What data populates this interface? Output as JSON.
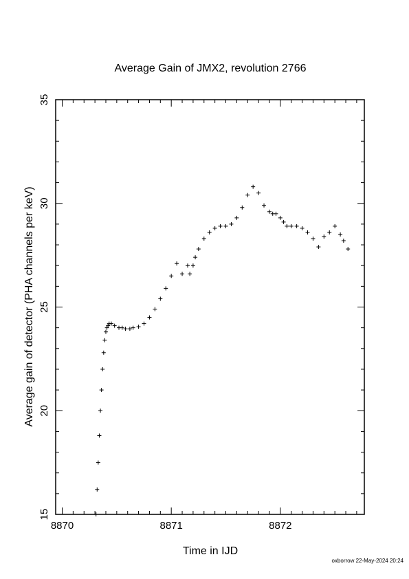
{
  "chart_data": {
    "type": "scatter",
    "title": "Average Gain of JMX2, revolution 2766",
    "xlabel": "Time in IJD",
    "ylabel": "Average gain of detector (PHA channels per keV)",
    "xlim": [
      8869.94,
      8872.77
    ],
    "ylim": [
      15,
      35
    ],
    "xticks": [
      8870,
      8871,
      8872
    ],
    "yticks": [
      15,
      20,
      25,
      30,
      35
    ],
    "marker": "plus",
    "grid": false,
    "footer": "oxborrow 22-May-2024 20:24",
    "series": [
      {
        "x": [
          8870.31,
          8870.32,
          8870.33,
          8870.34,
          8870.35,
          8870.36,
          8870.37,
          8870.38,
          8870.39,
          8870.4,
          8870.41,
          8870.42,
          8870.43,
          8870.45,
          8870.48,
          8870.52,
          8870.55,
          8870.58,
          8870.62,
          8870.65,
          8870.7,
          8870.75,
          8870.8,
          8870.85,
          8870.9,
          8870.95,
          8871.0,
          8871.05,
          8871.1,
          8871.15,
          8871.17,
          8871.2,
          8871.22,
          8871.25,
          8871.3,
          8871.35,
          8871.4,
          8871.45,
          8871.5,
          8871.55,
          8871.6,
          8871.65,
          8871.7,
          8871.75,
          8871.8,
          8871.85,
          8871.9,
          8871.93,
          8871.96,
          8872.0,
          8872.03,
          8872.06,
          8872.1,
          8872.15,
          8872.2,
          8872.25,
          8872.3,
          8872.35,
          8872.4,
          8872.45,
          8872.5,
          8872.55,
          8872.58,
          8872.62
        ],
        "y": [
          15.0,
          16.2,
          17.5,
          18.8,
          20.0,
          21.0,
          22.0,
          22.8,
          23.4,
          23.8,
          24.0,
          24.1,
          24.2,
          24.2,
          24.1,
          24.0,
          24.0,
          23.95,
          23.95,
          24.0,
          24.05,
          24.2,
          24.5,
          24.9,
          25.4,
          25.9,
          26.5,
          27.1,
          26.6,
          27.0,
          26.6,
          27.0,
          27.4,
          27.8,
          28.3,
          28.6,
          28.8,
          28.9,
          28.9,
          29.0,
          29.3,
          29.8,
          30.4,
          30.8,
          30.5,
          29.9,
          29.6,
          29.5,
          29.5,
          29.3,
          29.1,
          28.9,
          28.9,
          28.9,
          28.8,
          28.6,
          28.3,
          27.9,
          28.4,
          28.6,
          28.9,
          28.5,
          28.2,
          27.8
        ]
      }
    ]
  }
}
